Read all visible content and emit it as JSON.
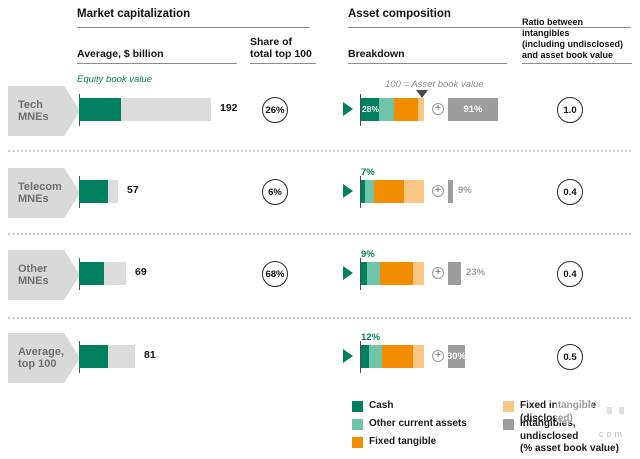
{
  "header": {
    "left_title": "Market capitalization",
    "right_title": "Asset composition",
    "col_average": "Average, $ billion",
    "col_share": "Share of\ntotal top 100",
    "col_breakdown": "Breakdown",
    "col_ratio": "Ratio between intangibles\n(including undisclosed)\nand asset book value"
  },
  "annotations": {
    "equity_note": "Equity book value",
    "scale_note": "100 = Asset book value"
  },
  "colors": {
    "cash": "#00805F",
    "other_current": "#6FC4AA",
    "fixed_tangible": "#F28D00",
    "fixed_intangible": "#FAC684",
    "undisclosed": "#9D9D9D",
    "market_cap_remainder": "#DCDCDC",
    "row_label_bg": "#D9D9D9",
    "row_label_text": "#6E6E6E",
    "accent_green": "#00805F"
  },
  "rows": [
    {
      "label": "Tech\nMNEs",
      "market_cap_label": "192",
      "market_cap_total": 192,
      "equity_book_value_est": 61,
      "share_of_top100": "26%",
      "segments_pct": {
        "cash": 28,
        "other_current": 24,
        "fixed_tangible": 38,
        "fixed_intangible": 10
      },
      "cash_label": "28%",
      "cash_label_position": "inside",
      "undisclosed_pct": 91,
      "undisclosed_label": "91%",
      "undisclosed_label_position": "inside",
      "ratio": "1.0"
    },
    {
      "label": "Telecom\nMNEs",
      "market_cap_label": "57",
      "market_cap_total": 57,
      "equity_book_value_est": 42,
      "share_of_top100": "6%",
      "segments_pct": {
        "cash": 7,
        "other_current": 13,
        "fixed_tangible": 49,
        "fixed_intangible": 31
      },
      "cash_label": "7%",
      "cash_label_position": "above",
      "undisclosed_pct": 9,
      "undisclosed_label": "9%",
      "undisclosed_label_position": "outside",
      "ratio": "0.4"
    },
    {
      "label": "Other\nMNEs",
      "market_cap_label": "69",
      "market_cap_total": 69,
      "equity_book_value_est": 37,
      "share_of_top100": "68%",
      "segments_pct": {
        "cash": 9,
        "other_current": 21,
        "fixed_tangible": 52,
        "fixed_intangible": 18
      },
      "cash_label": "9%",
      "cash_label_position": "above",
      "undisclosed_pct": 23,
      "undisclosed_label": "23%",
      "undisclosed_label_position": "outside",
      "ratio": "0.4"
    },
    {
      "label": "Average,\ntop 100",
      "market_cap_label": "81",
      "market_cap_total": 81,
      "equity_book_value_est": 42,
      "share_of_top100": null,
      "segments_pct": {
        "cash": 12,
        "other_current": 21,
        "fixed_tangible": 50,
        "fixed_intangible": 17
      },
      "cash_label": "12%",
      "cash_label_position": "above",
      "undisclosed_pct": 30,
      "undisclosed_label": "30%",
      "undisclosed_label_position": "inside",
      "ratio": "0.5"
    }
  ],
  "legend": [
    {
      "label": "Cash",
      "color": "#00805F"
    },
    {
      "label": "Other current assets",
      "color": "#6FC4AA"
    },
    {
      "label": "Fixed tangible",
      "color": "#F28D00"
    },
    {
      "label": "Fixed intangible (disclosed)",
      "color": "#FAC684"
    },
    {
      "label": "Intangibles, undisclosed\n(% asset book value)",
      "color": "#9D9D9D"
    }
  ],
  "watermark": {
    "text": "com"
  },
  "chart_data": [
    {
      "type": "bar",
      "title": "Market capitalization",
      "subtitle": "Average, $ billion",
      "categories": [
        "Tech MNEs",
        "Telecom MNEs",
        "Other MNEs",
        "Average, top 100"
      ],
      "series": [
        {
          "name": "Equity book value",
          "values": [
            61,
            42,
            37,
            42
          ],
          "note": "estimated from bar widths, not labeled"
        },
        {
          "name": "Market capitalization, average $ billion",
          "values": [
            192,
            57,
            69,
            81
          ]
        }
      ],
      "share_of_total_top_100_pct": [
        26,
        6,
        68,
        null
      ],
      "xlim": [
        0,
        200
      ],
      "grid": false
    },
    {
      "type": "bar",
      "title": "Asset composition",
      "subtitle": "Breakdown",
      "note": "100 = Asset book value",
      "categories": [
        "Tech MNEs",
        "Telecom MNEs",
        "Other MNEs",
        "Average, top 100"
      ],
      "series": [
        {
          "name": "Cash",
          "values": [
            28,
            7,
            9,
            12
          ]
        },
        {
          "name": "Other current assets",
          "values": [
            24,
            13,
            21,
            21
          ],
          "note": "estimated"
        },
        {
          "name": "Fixed tangible",
          "values": [
            38,
            49,
            52,
            50
          ],
          "note": "estimated"
        },
        {
          "name": "Fixed intangible (disclosed)",
          "values": [
            10,
            31,
            18,
            17
          ],
          "note": "estimated"
        },
        {
          "name": "Intangibles, undisclosed (% asset book value)",
          "values": [
            91,
            9,
            23,
            30
          ]
        }
      ],
      "ratio_intangibles_to_asset_book_value": [
        1.0,
        0.4,
        0.4,
        0.5
      ],
      "xlim": [
        0,
        100
      ],
      "grid": false,
      "legend_position": "bottom"
    }
  ]
}
